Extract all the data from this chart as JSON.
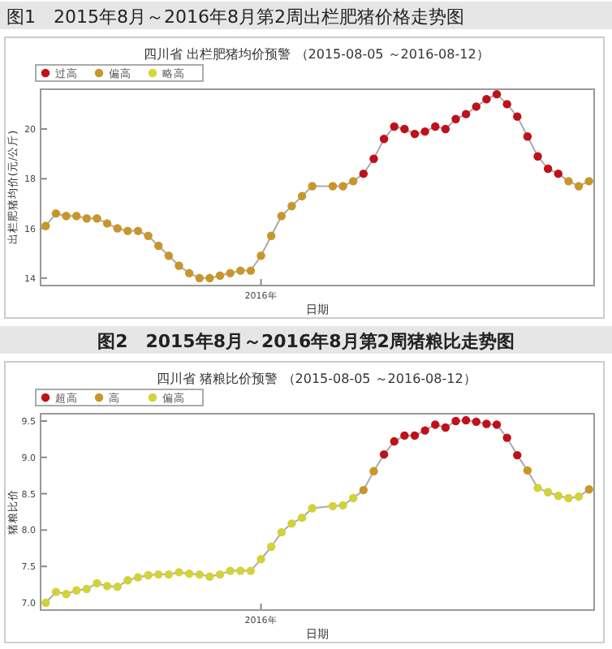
{
  "chart_data": [
    {
      "type": "line",
      "title": "图1　2015年8月～2016年8月第2周出栏肥猪价格走势图",
      "subtitle": "四川省 出栏肥猪均价预警 （2015-08-05 ～2016-08-12）",
      "xlabel": "日期",
      "ylabel": "出栏肥猪均价(元/公斤)",
      "legend": "top left",
      "marker": "circle",
      "categories": [
        null,
        null,
        null,
        null,
        null,
        null,
        null,
        null,
        null,
        null,
        null,
        null,
        null,
        null,
        null,
        null,
        null,
        null,
        null,
        null,
        null,
        "2016年",
        null,
        null,
        null,
        null,
        null,
        null,
        null,
        null,
        null,
        null,
        null,
        null,
        null,
        null,
        null,
        null,
        null,
        null,
        null,
        null,
        null,
        null,
        null,
        null,
        null,
        null,
        null,
        null,
        null,
        null,
        null,
        null
      ],
      "ylim": [
        13.7,
        21.6
      ],
      "yticks": [
        {
          "value": 14,
          "label": "14"
        },
        {
          "value": 16,
          "label": "16"
        },
        {
          "value": 18,
          "label": "18"
        },
        {
          "value": 20,
          "label": "20"
        }
      ],
      "series": [
        {
          "marker": "none",
          "color": "#aaaaaa",
          "values": [
            16.1,
            16.6,
            16.5,
            16.5,
            16.4,
            16.4,
            16.2,
            16.0,
            15.9,
            15.9,
            15.7,
            15.3,
            14.9,
            14.5,
            14.2,
            14.0,
            14.0,
            14.1,
            14.2,
            14.3,
            14.3,
            14.9,
            15.7,
            16.5,
            16.9,
            17.3,
            17.7,
            null,
            17.7,
            17.7,
            17.9,
            18.2,
            18.8,
            19.6,
            20.1,
            20.0,
            19.8,
            19.9,
            20.1,
            20.0,
            20.4,
            20.6,
            20.9,
            21.2,
            21.4,
            21.0,
            20.5,
            19.7,
            18.9,
            18.4,
            18.2,
            17.9,
            17.7,
            17.9
          ]
        },
        {
          "type": "scatter",
          "name": "过高",
          "color": "#c0101a",
          "values": [
            null,
            null,
            null,
            null,
            null,
            null,
            null,
            null,
            null,
            null,
            null,
            null,
            null,
            null,
            null,
            null,
            null,
            null,
            null,
            null,
            null,
            null,
            null,
            null,
            null,
            null,
            null,
            null,
            null,
            null,
            null,
            18.2,
            18.8,
            19.6,
            20.1,
            20.0,
            19.8,
            19.9,
            20.1,
            20.0,
            20.4,
            20.6,
            20.9,
            21.2,
            21.4,
            21.0,
            20.5,
            19.7,
            18.9,
            18.4,
            18.2,
            null,
            null,
            null
          ]
        },
        {
          "type": "scatter",
          "name": "偏高",
          "color": "#c8962a",
          "values": [
            16.1,
            16.6,
            16.5,
            16.5,
            16.4,
            16.4,
            16.2,
            16.0,
            15.9,
            15.9,
            15.7,
            15.3,
            14.9,
            14.5,
            14.2,
            14.0,
            14.0,
            14.1,
            14.2,
            14.3,
            14.3,
            14.9,
            15.7,
            16.5,
            16.9,
            17.3,
            17.7,
            null,
            17.7,
            17.7,
            17.9,
            null,
            null,
            null,
            null,
            null,
            null,
            null,
            null,
            null,
            null,
            null,
            null,
            null,
            null,
            null,
            null,
            null,
            null,
            null,
            null,
            17.9,
            17.7,
            17.9
          ]
        },
        {
          "type": "scatter",
          "name": "略高",
          "color": "#d8d830",
          "values": [
            null,
            null,
            null,
            null,
            null,
            null,
            null,
            null,
            null,
            null,
            null,
            null,
            null,
            null,
            null,
            null,
            null,
            null,
            null,
            null,
            null,
            null,
            null,
            null,
            null,
            null,
            null,
            null,
            null,
            null,
            null,
            null,
            null,
            null,
            null,
            null,
            null,
            null,
            null,
            null,
            null,
            null,
            null,
            null,
            null,
            null,
            null,
            null,
            null,
            null,
            null,
            null,
            null,
            null
          ]
        }
      ]
    },
    {
      "type": "line",
      "title": "图2　2015年8月～2016年8月第2周猪粮比走势图",
      "subtitle": "四川省 猪粮比价预警 （2015-08-05 ～2016-08-12）",
      "xlabel": "日期",
      "ylabel": "猪粮比价",
      "legend": "top left",
      "marker": "circle",
      "categories": [
        null,
        null,
        null,
        null,
        null,
        null,
        null,
        null,
        null,
        null,
        null,
        null,
        null,
        null,
        null,
        null,
        null,
        null,
        null,
        null,
        null,
        "2016年",
        null,
        null,
        null,
        null,
        null,
        null,
        null,
        null,
        null,
        null,
        null,
        null,
        null,
        null,
        null,
        null,
        null,
        null,
        null,
        null,
        null,
        null,
        null,
        null,
        null,
        null,
        null,
        null,
        null,
        null,
        null,
        null
      ],
      "ylim": [
        6.9,
        9.6
      ],
      "yticks": [
        {
          "value": 7,
          "label": "7.0"
        },
        {
          "value": 7.5,
          "label": "7.5"
        },
        {
          "value": 8,
          "label": "8.0"
        },
        {
          "value": 8.5,
          "label": "8.5"
        },
        {
          "value": 9,
          "label": "9.0"
        },
        {
          "value": 9.5,
          "label": "9.5"
        }
      ],
      "series": [
        {
          "marker": "none",
          "color": "#aaaaaa",
          "values": [
            7.0,
            7.15,
            7.12,
            7.17,
            7.19,
            7.27,
            7.23,
            7.22,
            7.31,
            7.35,
            7.38,
            7.39,
            7.39,
            7.42,
            7.4,
            7.39,
            7.36,
            7.39,
            7.44,
            7.44,
            7.44,
            7.6,
            7.77,
            7.97,
            8.09,
            8.17,
            8.3,
            null,
            8.33,
            8.34,
            8.44,
            8.55,
            8.81,
            9.04,
            9.22,
            9.3,
            9.3,
            9.37,
            9.45,
            9.41,
            9.5,
            9.51,
            9.49,
            9.46,
            9.45,
            9.27,
            9.03,
            8.82,
            8.58,
            8.52,
            8.47,
            8.44,
            8.46,
            8.56
          ]
        },
        {
          "type": "scatter",
          "name": "超高",
          "color": "#c0101a",
          "values": [
            null,
            null,
            null,
            null,
            null,
            null,
            null,
            null,
            null,
            null,
            null,
            null,
            null,
            null,
            null,
            null,
            null,
            null,
            null,
            null,
            null,
            null,
            null,
            null,
            null,
            null,
            null,
            null,
            null,
            null,
            null,
            null,
            null,
            9.04,
            9.22,
            9.3,
            9.3,
            9.37,
            9.45,
            9.41,
            9.5,
            9.51,
            9.49,
            9.46,
            9.45,
            9.27,
            9.03,
            null,
            null,
            null,
            null,
            null,
            null,
            null
          ]
        },
        {
          "type": "scatter",
          "name": "高",
          "color": "#c8962a",
          "values": [
            null,
            null,
            null,
            null,
            null,
            null,
            null,
            null,
            null,
            null,
            null,
            null,
            null,
            null,
            null,
            null,
            null,
            null,
            null,
            null,
            null,
            null,
            null,
            null,
            null,
            null,
            null,
            null,
            null,
            null,
            null,
            8.55,
            8.81,
            null,
            null,
            null,
            null,
            null,
            null,
            null,
            null,
            null,
            null,
            null,
            null,
            null,
            null,
            8.82,
            null,
            null,
            null,
            null,
            null,
            8.56
          ]
        },
        {
          "type": "scatter",
          "name": "偏高",
          "color": "#d2d23a",
          "values": [
            7.0,
            7.15,
            7.12,
            7.17,
            7.19,
            7.27,
            7.23,
            7.22,
            7.31,
            7.35,
            7.38,
            7.39,
            7.39,
            7.42,
            7.4,
            7.39,
            7.36,
            7.39,
            7.44,
            7.44,
            7.44,
            7.6,
            7.77,
            7.97,
            8.09,
            8.17,
            8.3,
            null,
            8.33,
            8.34,
            8.44,
            null,
            null,
            null,
            null,
            null,
            null,
            null,
            null,
            null,
            null,
            null,
            null,
            null,
            null,
            null,
            null,
            null,
            8.58,
            8.52,
            8.47,
            8.44,
            8.46,
            null
          ]
        }
      ]
    }
  ]
}
